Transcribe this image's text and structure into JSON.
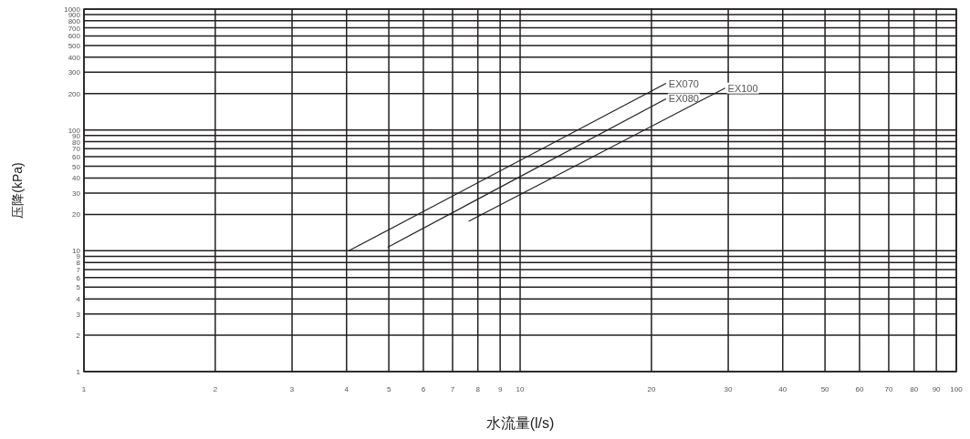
{
  "chart_data": {
    "type": "line",
    "xlabel": "水流量(l/s)",
    "ylabel": "压降(kPa)",
    "log": "xy",
    "grid": true,
    "xlim": [
      1,
      100
    ],
    "ylim": [
      1,
      1000
    ],
    "xticks": [
      1,
      2,
      3,
      4,
      5,
      6,
      7,
      8,
      9,
      10,
      20,
      30,
      40,
      50,
      60,
      70,
      80,
      90,
      100
    ],
    "yticks": [
      1,
      2,
      3,
      4,
      5,
      6,
      7,
      8,
      9,
      10,
      20,
      30,
      40,
      50,
      60,
      70,
      80,
      90,
      100,
      200,
      300,
      400,
      500,
      600,
      700,
      800,
      900,
      1000
    ],
    "series": [
      {
        "name": "EX070",
        "color": "#231f20",
        "x": [
          4.05,
          21.6
        ],
        "values": [
          10,
          243
        ]
      },
      {
        "name": "EX080",
        "color": "#231f20",
        "x": [
          4.97,
          21.6
        ],
        "values": [
          10.7,
          181
        ]
      },
      {
        "name": "EX100",
        "color": "#231f20",
        "x": [
          7.62,
          29.5
        ],
        "values": [
          17.5,
          222
        ]
      }
    ]
  }
}
